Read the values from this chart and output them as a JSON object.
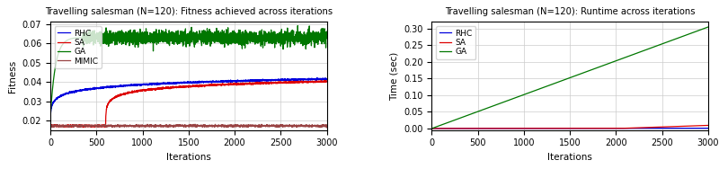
{
  "title_left": "Travelling salesman (N=120): Fitness achieved across iterations",
  "title_right": "Travelling salesman (N=120): Runtime across iterations",
  "xlabel": "Iterations",
  "ylabel_left": "Fitness",
  "ylabel_right": "Time (sec)",
  "xlim": [
    0,
    3000
  ],
  "ylim_left": [
    0.015,
    0.071
  ],
  "ylim_right": [
    -0.005,
    0.32
  ],
  "yticks_left": [
    0.02,
    0.03,
    0.04,
    0.05,
    0.06,
    0.07
  ],
  "yticks_right": [
    0.0,
    0.05,
    0.1,
    0.15,
    0.2,
    0.25,
    0.3
  ],
  "xticks": [
    0,
    500,
    1000,
    1500,
    2000,
    2500,
    3000
  ],
  "colors": {
    "RHC": "#0000dd",
    "SA": "#dd0000",
    "GA": "#007700",
    "MIMIC": "#994444"
  },
  "seed": 42,
  "n_iter": 3000
}
